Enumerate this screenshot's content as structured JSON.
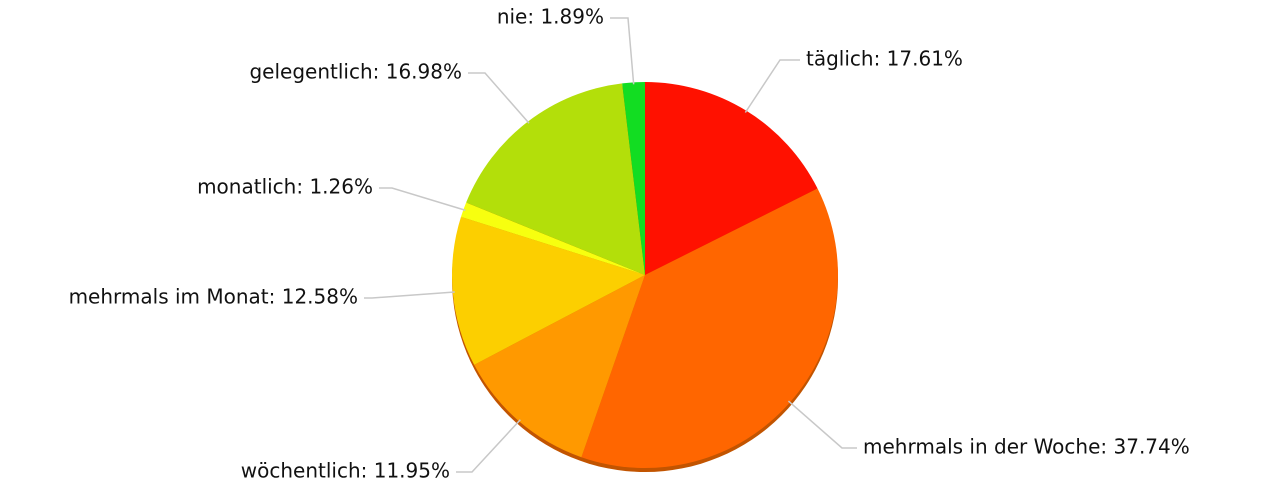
{
  "chart_data": {
    "type": "pie",
    "values": [
      17.61,
      37.74,
      11.95,
      12.58,
      1.26,
      16.98,
      1.89
    ],
    "value_labels": [
      "täglich: 17.61%",
      "mehrmals in der Woche: 37.74%",
      "wöchentlich: 11.95%",
      "mehrmals im Monat: 12.58%",
      "monatlich: 1.26%",
      "gelegentlich: 16.98%",
      "nie: 1.89%"
    ],
    "colors": [
      "#ff1100",
      "#ff6600",
      "#ff9900",
      "#fccf00",
      "#f7ff0f",
      "#b3df0a",
      "#12dd22"
    ]
  }
}
